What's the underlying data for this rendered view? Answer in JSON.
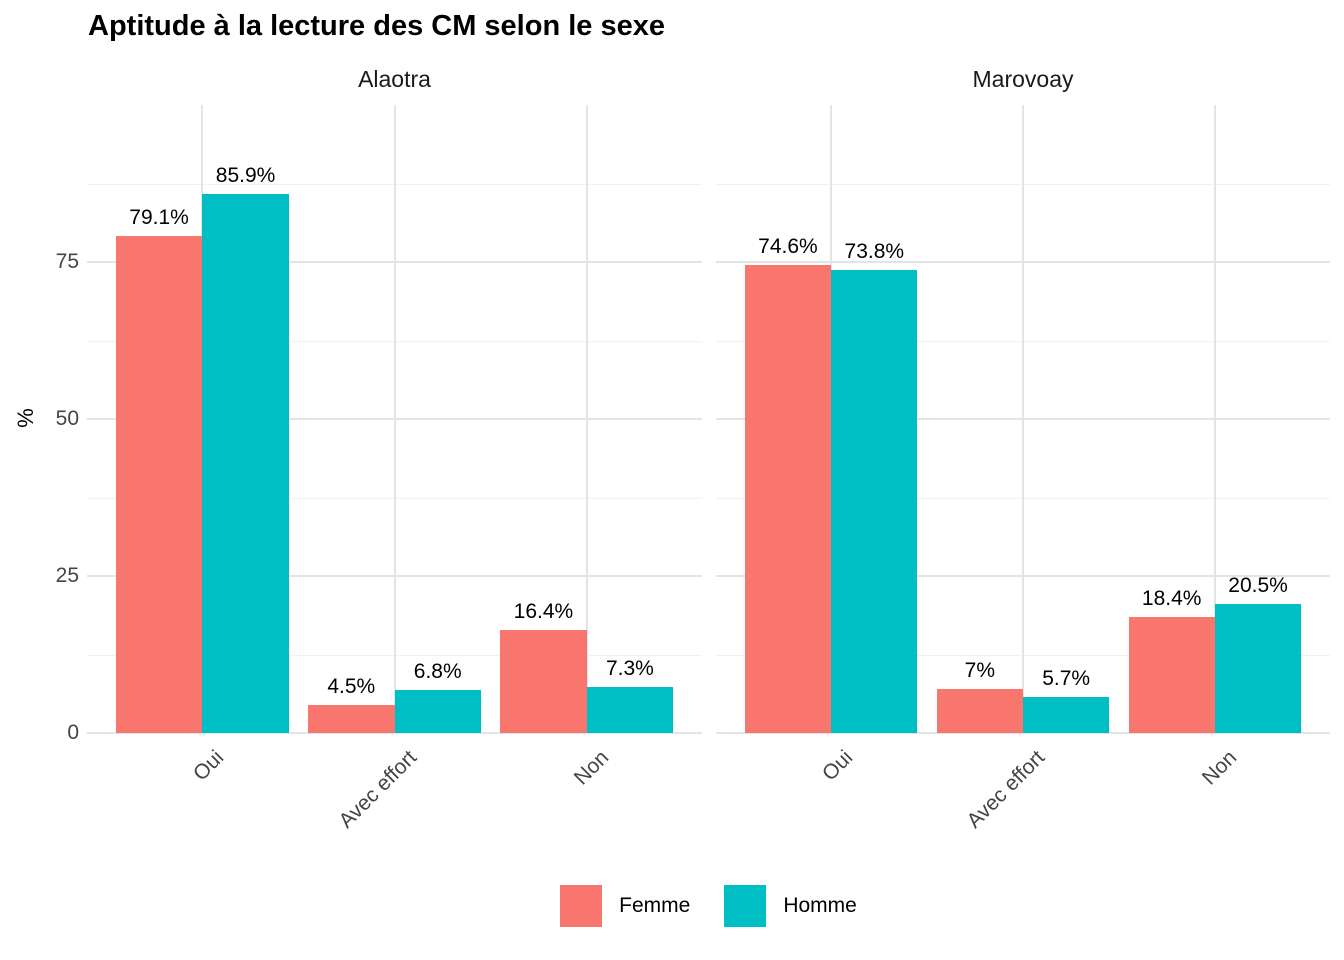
{
  "chart_data": {
    "type": "bar",
    "title": "Aptitude à la lecture des CM selon le sexe",
    "ylabel": "%",
    "ylim": [
      0,
      100
    ],
    "yticks": [
      0,
      25,
      50,
      75
    ],
    "yticks_minor": [
      12.5,
      37.5,
      62.5,
      87.5
    ],
    "categories": [
      "Oui",
      "Avec effort",
      "Non"
    ],
    "legend_position": "bottom",
    "grid": "horizontal major+minor, vertical major at category centers",
    "facets": [
      {
        "name": "Alaotra",
        "series": [
          {
            "name": "Femme",
            "color": "#F8766D",
            "values": [
              79.1,
              4.5,
              16.4
            ],
            "labels": [
              "79.1%",
              "4.5%",
              "16.4%"
            ]
          },
          {
            "name": "Homme",
            "color": "#00BFC4",
            "values": [
              85.9,
              6.8,
              7.3
            ],
            "labels": [
              "85.9%",
              "6.8%",
              "7.3%"
            ]
          }
        ]
      },
      {
        "name": "Marovoay",
        "series": [
          {
            "name": "Femme",
            "color": "#F8766D",
            "values": [
              74.6,
              7,
              18.4
            ],
            "labels": [
              "74.6%",
              "7%",
              "18.4%"
            ]
          },
          {
            "name": "Homme",
            "color": "#00BFC4",
            "values": [
              73.8,
              5.7,
              20.5
            ],
            "labels": [
              "73.8%",
              "5.7%",
              "20.5%"
            ]
          }
        ]
      }
    ],
    "legend": [
      {
        "label": "Femme",
        "color": "#F8766D"
      },
      {
        "label": "Homme",
        "color": "#00BFC4"
      }
    ]
  },
  "style": {
    "femme_color": "#F8766D",
    "homme_color": "#00BFC4",
    "grid_major_color": "#e4e4e4",
    "grid_minor_color": "#f1f1f1",
    "axis_text_color": "#444444",
    "strip_text_color": "#1a1a1a",
    "label_text_color": "#000000",
    "background_color": "#ffffff"
  }
}
